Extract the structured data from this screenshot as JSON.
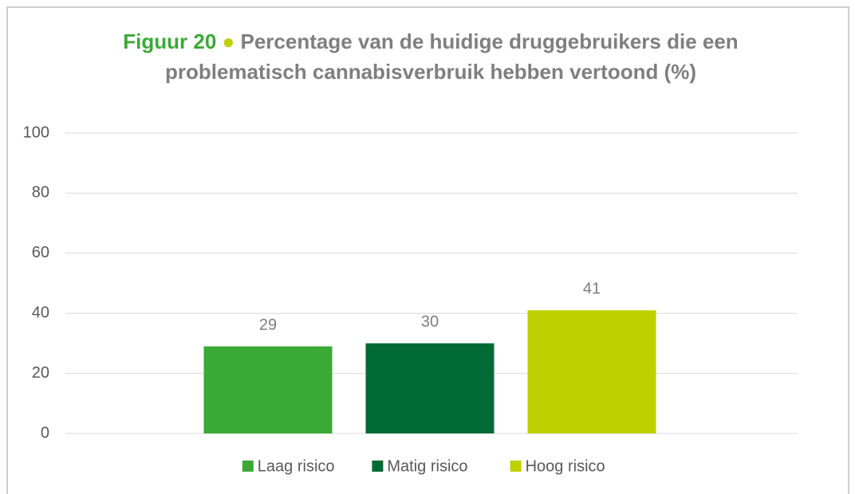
{
  "chart_data": {
    "type": "bar",
    "title": {
      "figure": "Figuur 20",
      "bullet": "●",
      "text": "Percentage van de huidige druggebruikers die een problematisch cannabisverbruik hebben vertoond (%)"
    },
    "categories": [
      null
    ],
    "series": [
      {
        "name": "Laag risico",
        "color": "#3aaa35",
        "values": [
          29
        ]
      },
      {
        "name": "Matig risico",
        "color": "#006b35",
        "values": [
          30
        ]
      },
      {
        "name": "Hoog risico",
        "color": "#bdd000",
        "values": [
          41
        ]
      }
    ],
    "ylim": [
      0,
      100
    ],
    "yticks": [
      0,
      20,
      40,
      60,
      80,
      100
    ],
    "grid": true,
    "legend": "bottom"
  }
}
